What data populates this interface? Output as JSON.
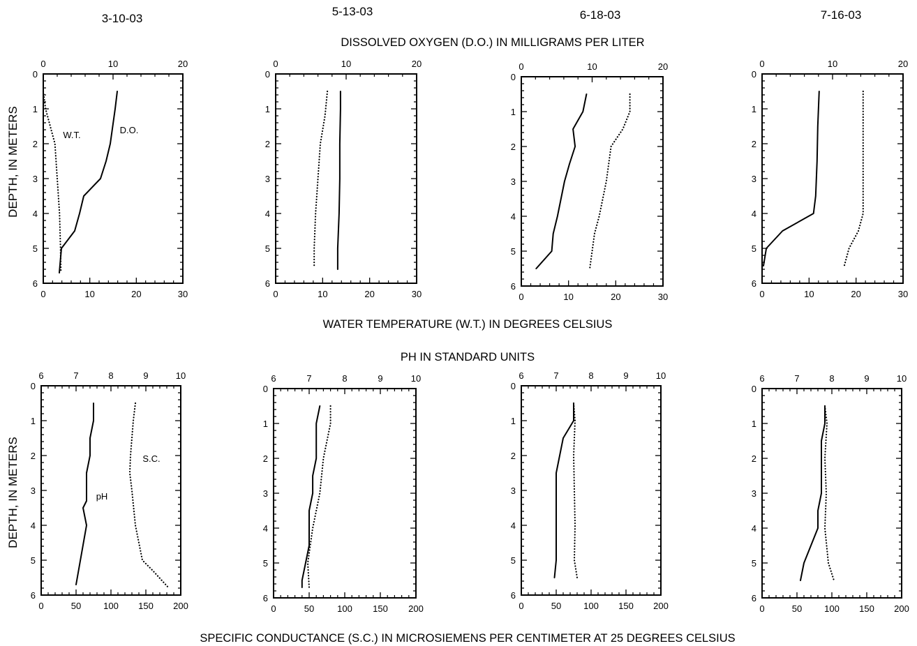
{
  "dates": [
    "3-10-03",
    "5-13-03",
    "6-18-03",
    "7-16-03"
  ],
  "top_title": "DISSOLVED OXYGEN (D.O.) IN MILLIGRAMS PER LITER",
  "top_bottom_title": "WATER TEMPERATURE (W.T.) IN DEGREES CELSIUS",
  "bottom_title": "PH IN STANDARD UNITS",
  "bottom_bottom_title": "SPECIFIC CONDUCTANCE (S.C.) IN MICROSIEMENS PER CENTIMETER AT 25 DEGREES CELSIUS",
  "y_label": "DEPTH, IN METERS",
  "colors": {
    "line": "#000000",
    "background": "#ffffff"
  },
  "chart_data": [
    {
      "type": "line",
      "date": "3-10-03",
      "ylim": [
        0,
        6
      ],
      "y_ticks": [
        "0",
        "1",
        "2",
        "3",
        "4",
        "5",
        "6"
      ],
      "top_axis": {
        "range": [
          0,
          20
        ],
        "ticks": [
          "0",
          "10",
          "20"
        ]
      },
      "bottom_axis": {
        "range": [
          0,
          30
        ],
        "ticks": [
          "0",
          "10",
          "20",
          "30"
        ]
      },
      "annotations": [
        {
          "text": "W.T."
        },
        {
          "text": "D.O."
        }
      ],
      "series": [
        {
          "name": "D.O.",
          "axis": "top",
          "style": "solid",
          "points": [
            [
              10.6,
              0.5
            ],
            [
              10.3,
              1
            ],
            [
              9.6,
              2
            ],
            [
              9.0,
              2.5
            ],
            [
              8.2,
              3
            ],
            [
              5.8,
              3.5
            ],
            [
              5.2,
              4
            ],
            [
              4.5,
              4.5
            ],
            [
              2.6,
              5
            ],
            [
              2.3,
              5.7
            ]
          ]
        },
        {
          "name": "W.T.",
          "axis": "bottom",
          "style": "dotted",
          "points": [
            [
              0,
              0.5
            ],
            [
              0.5,
              1
            ],
            [
              1.5,
              1.5
            ],
            [
              2.5,
              2
            ],
            [
              3.0,
              3
            ],
            [
              3.5,
              4
            ],
            [
              3.7,
              5
            ],
            [
              3.8,
              5.7
            ]
          ]
        }
      ]
    },
    {
      "type": "line",
      "date": "5-13-03",
      "ylim": [
        0,
        6
      ],
      "y_ticks": [
        "0",
        "1",
        "2",
        "3",
        "4",
        "5",
        "6"
      ],
      "top_axis": {
        "range": [
          0,
          20
        ],
        "ticks": [
          "0",
          "10",
          "20"
        ]
      },
      "bottom_axis": {
        "range": [
          0,
          30
        ],
        "ticks": [
          "0",
          "10",
          "20",
          "30"
        ]
      },
      "annotations": [],
      "series": [
        {
          "name": "D.O.",
          "axis": "top",
          "style": "solid",
          "points": [
            [
              9.2,
              0.5
            ],
            [
              9.2,
              1
            ],
            [
              9.1,
              2
            ],
            [
              9.1,
              3
            ],
            [
              9.0,
              4
            ],
            [
              8.8,
              5
            ],
            [
              8.8,
              5.6
            ]
          ]
        },
        {
          "name": "W.T.",
          "axis": "bottom",
          "style": "dotted",
          "points": [
            [
              11,
              0.5
            ],
            [
              10.5,
              1.2
            ],
            [
              9.5,
              2
            ],
            [
              9,
              3
            ],
            [
              8.5,
              4
            ],
            [
              8.2,
              5
            ],
            [
              8.2,
              5.5
            ]
          ]
        }
      ]
    },
    {
      "type": "line",
      "date": "6-18-03",
      "ylim": [
        0,
        6
      ],
      "y_ticks": [
        "0",
        "1",
        "2",
        "3",
        "4",
        "5",
        "6"
      ],
      "top_axis": {
        "range": [
          0,
          20
        ],
        "ticks": [
          "0",
          "10",
          "20"
        ]
      },
      "bottom_axis": {
        "range": [
          0,
          30
        ],
        "ticks": [
          "0",
          "10",
          "20",
          "30"
        ]
      },
      "annotations": [],
      "series": [
        {
          "name": "D.O.",
          "axis": "top",
          "style": "solid",
          "points": [
            [
              9.2,
              0.5
            ],
            [
              8.7,
              1
            ],
            [
              7.3,
              1.5
            ],
            [
              7.6,
              2
            ],
            [
              6.8,
              2.5
            ],
            [
              6.1,
              3
            ],
            [
              5.1,
              4
            ],
            [
              4.5,
              4.5
            ],
            [
              4.3,
              5
            ],
            [
              2.1,
              5.5
            ]
          ]
        },
        {
          "name": "W.T.",
          "axis": "bottom",
          "style": "dotted",
          "points": [
            [
              23,
              0.5
            ],
            [
              23,
              1
            ],
            [
              21.5,
              1.5
            ],
            [
              19,
              2
            ],
            [
              18.5,
              2.5
            ],
            [
              18,
              3
            ],
            [
              16.5,
              4
            ],
            [
              15.5,
              4.5
            ],
            [
              15,
              5
            ],
            [
              14.5,
              5.5
            ]
          ]
        }
      ]
    },
    {
      "type": "line",
      "date": "7-16-03",
      "ylim": [
        0,
        6
      ],
      "y_ticks": [
        "0",
        "1",
        "2",
        "3",
        "4",
        "5",
        "6"
      ],
      "top_axis": {
        "range": [
          0,
          20
        ],
        "ticks": [
          "0",
          "10",
          "20"
        ]
      },
      "bottom_axis": {
        "range": [
          0,
          30
        ],
        "ticks": [
          "0",
          "10",
          "20",
          "30"
        ]
      },
      "annotations": [],
      "series": [
        {
          "name": "D.O.",
          "axis": "top",
          "style": "solid",
          "points": [
            [
              8.1,
              0.5
            ],
            [
              7.9,
              1.5
            ],
            [
              7.8,
              2.5
            ],
            [
              7.6,
              3.5
            ],
            [
              7.3,
              4
            ],
            [
              2.9,
              4.5
            ],
            [
              0.6,
              5
            ],
            [
              0.2,
              5.5
            ]
          ]
        },
        {
          "name": "W.T.",
          "axis": "bottom",
          "style": "dotted",
          "points": [
            [
              21.5,
              0.5
            ],
            [
              21.5,
              2
            ],
            [
              21.5,
              3
            ],
            [
              21.5,
              4
            ],
            [
              20.5,
              4.5
            ],
            [
              18.5,
              5
            ],
            [
              17.5,
              5.5
            ]
          ]
        }
      ]
    },
    {
      "type": "line",
      "date": "3-10-03",
      "ylim": [
        0,
        6
      ],
      "y_ticks": [
        "0",
        "1",
        "2",
        "3",
        "4",
        "5",
        "6"
      ],
      "top_axis": {
        "range": [
          6,
          10
        ],
        "ticks": [
          "6",
          "7",
          "8",
          "9",
          "10"
        ]
      },
      "bottom_axis": {
        "range": [
          0,
          200
        ],
        "ticks": [
          "0",
          "50",
          "100",
          "150",
          "200"
        ]
      },
      "annotations": [
        {
          "text": "S.C."
        },
        {
          "text": "pH"
        }
      ],
      "series": [
        {
          "name": "pH",
          "axis": "top",
          "style": "solid",
          "points": [
            [
              7.5,
              0.5
            ],
            [
              7.5,
              1
            ],
            [
              7.4,
              1.5
            ],
            [
              7.4,
              2
            ],
            [
              7.3,
              2.5
            ],
            [
              7.3,
              3
            ],
            [
              7.3,
              3.3
            ],
            [
              7.2,
              3.5
            ],
            [
              7.3,
              4
            ],
            [
              7.0,
              5.7
            ]
          ]
        },
        {
          "name": "S.C.",
          "axis": "bottom",
          "style": "dotted",
          "points": [
            [
              135,
              0.5
            ],
            [
              132,
              1
            ],
            [
              130,
              1.5
            ],
            [
              128,
              2
            ],
            [
              127,
              2.5
            ],
            [
              130,
              3
            ],
            [
              135,
              4
            ],
            [
              145,
              5
            ],
            [
              160,
              5.3
            ],
            [
              183,
              5.8
            ]
          ]
        }
      ]
    },
    {
      "type": "line",
      "date": "5-13-03",
      "ylim": [
        0,
        6
      ],
      "y_ticks": [
        "0",
        "1",
        "2",
        "3",
        "4",
        "5",
        "6"
      ],
      "top_axis": {
        "range": [
          6,
          10
        ],
        "ticks": [
          "6",
          "7",
          "8",
          "9",
          "10"
        ]
      },
      "bottom_axis": {
        "range": [
          0,
          200
        ],
        "ticks": [
          "0",
          "50",
          "100",
          "150",
          "200"
        ]
      },
      "annotations": [],
      "series": [
        {
          "name": "pH",
          "axis": "top",
          "style": "solid",
          "points": [
            [
              7.3,
              0.5
            ],
            [
              7.2,
              1
            ],
            [
              7.2,
              2
            ],
            [
              7.1,
              2.5
            ],
            [
              7.1,
              3
            ],
            [
              7.0,
              3.5
            ],
            [
              7.0,
              4.5
            ],
            [
              6.9,
              5
            ],
            [
              6.8,
              5.5
            ],
            [
              6.8,
              5.7
            ]
          ]
        },
        {
          "name": "S.C.",
          "axis": "bottom",
          "style": "dotted",
          "points": [
            [
              80,
              0.5
            ],
            [
              80,
              1
            ],
            [
              75,
              1.5
            ],
            [
              70,
              2
            ],
            [
              65,
              3
            ],
            [
              55,
              4
            ],
            [
              48,
              5
            ],
            [
              50,
              5.7
            ]
          ]
        }
      ]
    },
    {
      "type": "line",
      "date": "6-18-03",
      "ylim": [
        0,
        6
      ],
      "y_ticks": [
        "0",
        "1",
        "2",
        "3",
        "4",
        "5",
        "6"
      ],
      "top_axis": {
        "range": [
          6,
          10
        ],
        "ticks": [
          "6",
          "7",
          "8",
          "9",
          "10"
        ]
      },
      "bottom_axis": {
        "range": [
          0,
          200
        ],
        "ticks": [
          "0",
          "50",
          "100",
          "150",
          "200"
        ]
      },
      "annotations": [],
      "series": [
        {
          "name": "pH",
          "axis": "top",
          "style": "solid",
          "points": [
            [
              7.5,
              0.5
            ],
            [
              7.5,
              1
            ],
            [
              7.2,
              1.5
            ],
            [
              7.1,
              2
            ],
            [
              7.0,
              2.5
            ],
            [
              7.0,
              4
            ],
            [
              7.0,
              5
            ],
            [
              6.95,
              5.5
            ]
          ]
        },
        {
          "name": "S.C.",
          "axis": "bottom",
          "style": "dotted",
          "points": [
            [
              75,
              0.5
            ],
            [
              77,
              1
            ],
            [
              75,
              2
            ],
            [
              76,
              3
            ],
            [
              77,
              4
            ],
            [
              76,
              5
            ],
            [
              80,
              5.5
            ]
          ]
        }
      ]
    },
    {
      "type": "line",
      "date": "7-16-03",
      "ylim": [
        0,
        6
      ],
      "y_ticks": [
        "0",
        "1",
        "2",
        "3",
        "4",
        "5",
        "6"
      ],
      "top_axis": {
        "range": [
          6,
          10
        ],
        "ticks": [
          "6",
          "7",
          "8",
          "9",
          "10"
        ]
      },
      "bottom_axis": {
        "range": [
          0,
          200
        ],
        "ticks": [
          "0",
          "50",
          "100",
          "150",
          "200"
        ]
      },
      "annotations": [],
      "series": [
        {
          "name": "pH",
          "axis": "top",
          "style": "solid",
          "points": [
            [
              7.8,
              0.5
            ],
            [
              7.8,
              1
            ],
            [
              7.7,
              1.5
            ],
            [
              7.7,
              2.5
            ],
            [
              7.7,
              3
            ],
            [
              7.6,
              3.5
            ],
            [
              7.6,
              4
            ],
            [
              7.4,
              4.5
            ],
            [
              7.2,
              5
            ],
            [
              7.1,
              5.5
            ]
          ]
        },
        {
          "name": "S.C.",
          "axis": "bottom",
          "style": "dotted",
          "points": [
            [
              90,
              0.5
            ],
            [
              93,
              1
            ],
            [
              90,
              2
            ],
            [
              92,
              3
            ],
            [
              90,
              4
            ],
            [
              95,
              5
            ],
            [
              103,
              5.5
            ]
          ]
        }
      ]
    }
  ]
}
